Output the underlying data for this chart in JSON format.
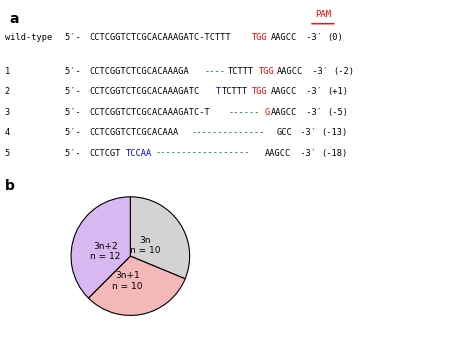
{
  "panel_a_label": "a",
  "panel_b_label": "b",
  "pam_label": "PAM",
  "wildtype_label": "wild-type",
  "sequences": {
    "wildtype": {
      "prefix": "5′- ",
      "parts": [
        {
          "text": "CCTCGGTCTCGCACAAAGATC-TCTTT",
          "color": "black"
        },
        {
          "text": "TGG",
          "color": "red"
        },
        {
          "text": "AAGCC",
          "color": "black"
        }
      ],
      "suffix": " -3′",
      "score": "(0)"
    },
    "mutants": [
      {
        "num": "1",
        "parts": [
          {
            "text": "CCTCGGTCTCGCACAAAGA",
            "color": "black"
          },
          {
            "text": "----",
            "color": "green"
          },
          {
            "text": "TCTTT",
            "color": "black"
          },
          {
            "text": "TGG",
            "color": "red"
          },
          {
            "text": "AAGCC",
            "color": "black"
          }
        ],
        "score": "(-2)"
      },
      {
        "num": "2",
        "parts": [
          {
            "text": "CCTCGGTCTCGCACAAAGATC",
            "color": "black"
          },
          {
            "text": "T",
            "color": "blue"
          },
          {
            "text": "TCTTT",
            "color": "black"
          },
          {
            "text": "TGG",
            "color": "red"
          },
          {
            "text": "AAGCC",
            "color": "black"
          }
        ],
        "score": "(+1)"
      },
      {
        "num": "3",
        "parts": [
          {
            "text": "CCTCGGTCTCGCACAAAGATC-T",
            "color": "black"
          },
          {
            "text": "------",
            "color": "green"
          },
          {
            "text": "G",
            "color": "red"
          },
          {
            "text": "AAGCC",
            "color": "black"
          }
        ],
        "score": "(-5)"
      },
      {
        "num": "4",
        "parts": [
          {
            "text": "CCTCGGTCTCGCACAAA",
            "color": "black"
          },
          {
            "text": "--------------",
            "color": "green"
          },
          {
            "text": "GCC",
            "color": "black"
          }
        ],
        "score": "(-13)"
      },
      {
        "num": "5",
        "parts": [
          {
            "text": "CCTCGT",
            "color": "black"
          },
          {
            "text": "TCCAA",
            "color": "blue"
          },
          {
            "text": "------------------",
            "color": "green"
          },
          {
            "text": "AAGCC",
            "color": "black"
          }
        ],
        "score": "(-18)"
      }
    ]
  },
  "pie": {
    "labels": [
      "3n",
      "3n+1",
      "3n+2"
    ],
    "label2": [
      "n = 10",
      "n = 10",
      "n = 12"
    ],
    "values": [
      10,
      10,
      12
    ],
    "colors": [
      "#d3d3d3",
      "#f4b8b8",
      "#d8b8f0"
    ],
    "startangle": 90
  }
}
